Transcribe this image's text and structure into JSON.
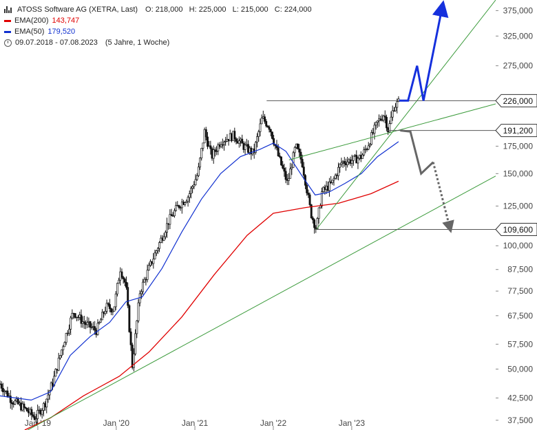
{
  "legend": {
    "title": "ATOSS Software AG (XETRA, Last)",
    "ohlc": "O: 218,000   H: 225,000   L: 215,000   C: 224,000",
    "ema200_label": "EMA(200)",
    "ema200_value": "143,747",
    "ema50_label": "EMA(50)",
    "ema50_value": "179,520",
    "period": "09.07.2018 - 07.08.2023",
    "period_note": "(5 Jahre, 1 Woche)"
  },
  "colors": {
    "ema200": "#e00000",
    "ema50": "#1030d0",
    "trendline": "#3a9a3a",
    "bullish_arrow": "#1530dd",
    "bearish_arrow": "#666666",
    "candle": "#111111"
  },
  "chart_data": {
    "type": "candlestick",
    "title": "ATOSS Software AG (XETRA, Last)",
    "scale": "log",
    "ylim": [
      35.5,
      398
    ],
    "y_ticks": [
      {
        "v": 37.5,
        "label": "37,500"
      },
      {
        "v": 42.5,
        "label": "42,500"
      },
      {
        "v": 50,
        "label": "50,000"
      },
      {
        "v": 57.5,
        "label": "57,500"
      },
      {
        "v": 67.5,
        "label": "67,500"
      },
      {
        "v": 77.5,
        "label": "77,500"
      },
      {
        "v": 87.5,
        "label": "87,500"
      },
      {
        "v": 100,
        "label": "100,000"
      },
      {
        "v": 125,
        "label": "125,000"
      },
      {
        "v": 150,
        "label": "150,000"
      },
      {
        "v": 175,
        "label": "175,000"
      },
      {
        "v": 275,
        "label": "275,000"
      },
      {
        "v": 325,
        "label": "325,000"
      },
      {
        "v": 375,
        "label": "375,000"
      }
    ],
    "x_ticks": [
      {
        "date": "2019-01-01",
        "label": "Jan '19"
      },
      {
        "date": "2020-01-01",
        "label": "Jan '20"
      },
      {
        "date": "2021-01-01",
        "label": "Jan '21"
      },
      {
        "date": "2022-01-01",
        "label": "Jan '22"
      },
      {
        "date": "2023-01-01",
        "label": "Jan '23"
      }
    ],
    "xlim": [
      "2018-07-09",
      "2024-11-01"
    ],
    "price_path": [
      [
        "2018-07-09",
        46
      ],
      [
        "2018-09-01",
        42
      ],
      [
        "2018-11-01",
        40
      ],
      [
        "2018-12-20",
        38
      ],
      [
        "2019-02-01",
        41
      ],
      [
        "2019-03-15",
        47
      ],
      [
        "2019-05-01",
        58
      ],
      [
        "2019-06-15",
        69
      ],
      [
        "2019-08-01",
        65
      ],
      [
        "2019-10-01",
        62
      ],
      [
        "2019-11-15",
        71
      ],
      [
        "2019-12-20",
        70
      ],
      [
        "2020-01-20",
        88
      ],
      [
        "2020-02-15",
        80
      ],
      [
        "2020-03-16",
        51
      ],
      [
        "2020-04-20",
        77
      ],
      [
        "2020-06-01",
        88
      ],
      [
        "2020-07-15",
        100
      ],
      [
        "2020-09-01",
        115
      ],
      [
        "2020-10-15",
        125
      ],
      [
        "2020-12-01",
        132
      ],
      [
        "2021-01-15",
        150
      ],
      [
        "2021-02-15",
        190
      ],
      [
        "2021-03-20",
        165
      ],
      [
        "2021-05-01",
        180
      ],
      [
        "2021-07-01",
        186
      ],
      [
        "2021-08-15",
        175
      ],
      [
        "2021-10-01",
        168
      ],
      [
        "2021-11-10",
        205
      ],
      [
        "2021-12-15",
        195
      ],
      [
        "2022-01-25",
        165
      ],
      [
        "2022-03-08",
        142
      ],
      [
        "2022-04-15",
        175
      ],
      [
        "2022-05-15",
        160
      ],
      [
        "2022-06-25",
        120
      ],
      [
        "2022-07-20",
        110
      ],
      [
        "2022-08-15",
        135
      ],
      [
        "2022-10-01",
        142
      ],
      [
        "2022-11-15",
        160
      ],
      [
        "2023-01-10",
        162
      ],
      [
        "2023-02-15",
        165
      ],
      [
        "2023-03-15",
        175
      ],
      [
        "2023-05-01",
        200
      ],
      [
        "2023-06-01",
        210
      ],
      [
        "2023-06-20",
        191
      ],
      [
        "2023-07-15",
        218
      ],
      [
        "2023-08-07",
        224
      ]
    ],
    "ema50_path": [
      [
        "2018-07-09",
        43
      ],
      [
        "2018-12-01",
        42
      ],
      [
        "2019-03-01",
        44
      ],
      [
        "2019-06-01",
        54
      ],
      [
        "2019-09-01",
        60
      ],
      [
        "2019-12-01",
        65
      ],
      [
        "2020-02-15",
        73
      ],
      [
        "2020-05-01",
        75
      ],
      [
        "2020-08-01",
        88
      ],
      [
        "2020-11-01",
        108
      ],
      [
        "2021-02-01",
        130
      ],
      [
        "2021-05-01",
        150
      ],
      [
        "2021-08-01",
        165
      ],
      [
        "2021-11-01",
        172
      ],
      [
        "2022-01-01",
        178
      ],
      [
        "2022-03-01",
        170
      ],
      [
        "2022-05-15",
        148
      ],
      [
        "2022-07-15",
        133
      ],
      [
        "2022-09-15",
        135
      ],
      [
        "2022-12-01",
        142
      ],
      [
        "2023-02-15",
        150
      ],
      [
        "2023-05-01",
        165
      ],
      [
        "2023-08-07",
        179.5
      ]
    ],
    "ema200_path": [
      [
        "2018-11-01",
        35.5
      ],
      [
        "2019-03-01",
        38
      ],
      [
        "2019-08-01",
        43
      ],
      [
        "2020-01-15",
        48
      ],
      [
        "2020-06-01",
        55
      ],
      [
        "2020-11-01",
        67
      ],
      [
        "2021-04-01",
        85
      ],
      [
        "2021-09-01",
        106
      ],
      [
        "2022-01-01",
        120
      ],
      [
        "2022-06-01",
        124
      ],
      [
        "2022-11-01",
        127
      ],
      [
        "2023-04-01",
        134
      ],
      [
        "2023-08-07",
        143.7
      ]
    ],
    "horizontal_levels": [
      {
        "value": 226,
        "label": "226,000",
        "from": "2021-12-01"
      },
      {
        "value": 191.2,
        "label": "191,200",
        "from": "2023-06-10"
      },
      {
        "value": 109.6,
        "label": "109,600",
        "from": "2022-07-10"
      }
    ],
    "trendlines": [
      [
        [
          "2018-11-15",
          35.5
        ],
        [
          "2024-11-01",
          148
        ]
      ],
      [
        [
          "2022-07-20",
          109.6
        ],
        [
          "2024-11-01",
          398
        ]
      ],
      [
        [
          "2022-03-15",
          162
        ],
        [
          "2024-11-01",
          222
        ]
      ]
    ],
    "scenario_bullish": [
      [
        "2023-08-10",
        226
      ],
      [
        "2023-09-20",
        226
      ],
      [
        "2023-11-01",
        275
      ],
      [
        "2023-12-01",
        226
      ],
      [
        "2024-02-25",
        380
      ]
    ],
    "scenario_bearish": [
      [
        "2023-08-15",
        191.2
      ],
      [
        "2023-10-01",
        190
      ],
      [
        "2023-11-20",
        150
      ],
      [
        "2024-01-15",
        160
      ]
    ],
    "scenario_bearish_dotted": [
      [
        "2024-01-15",
        160
      ],
      [
        "2024-04-01",
        111
      ]
    ]
  }
}
